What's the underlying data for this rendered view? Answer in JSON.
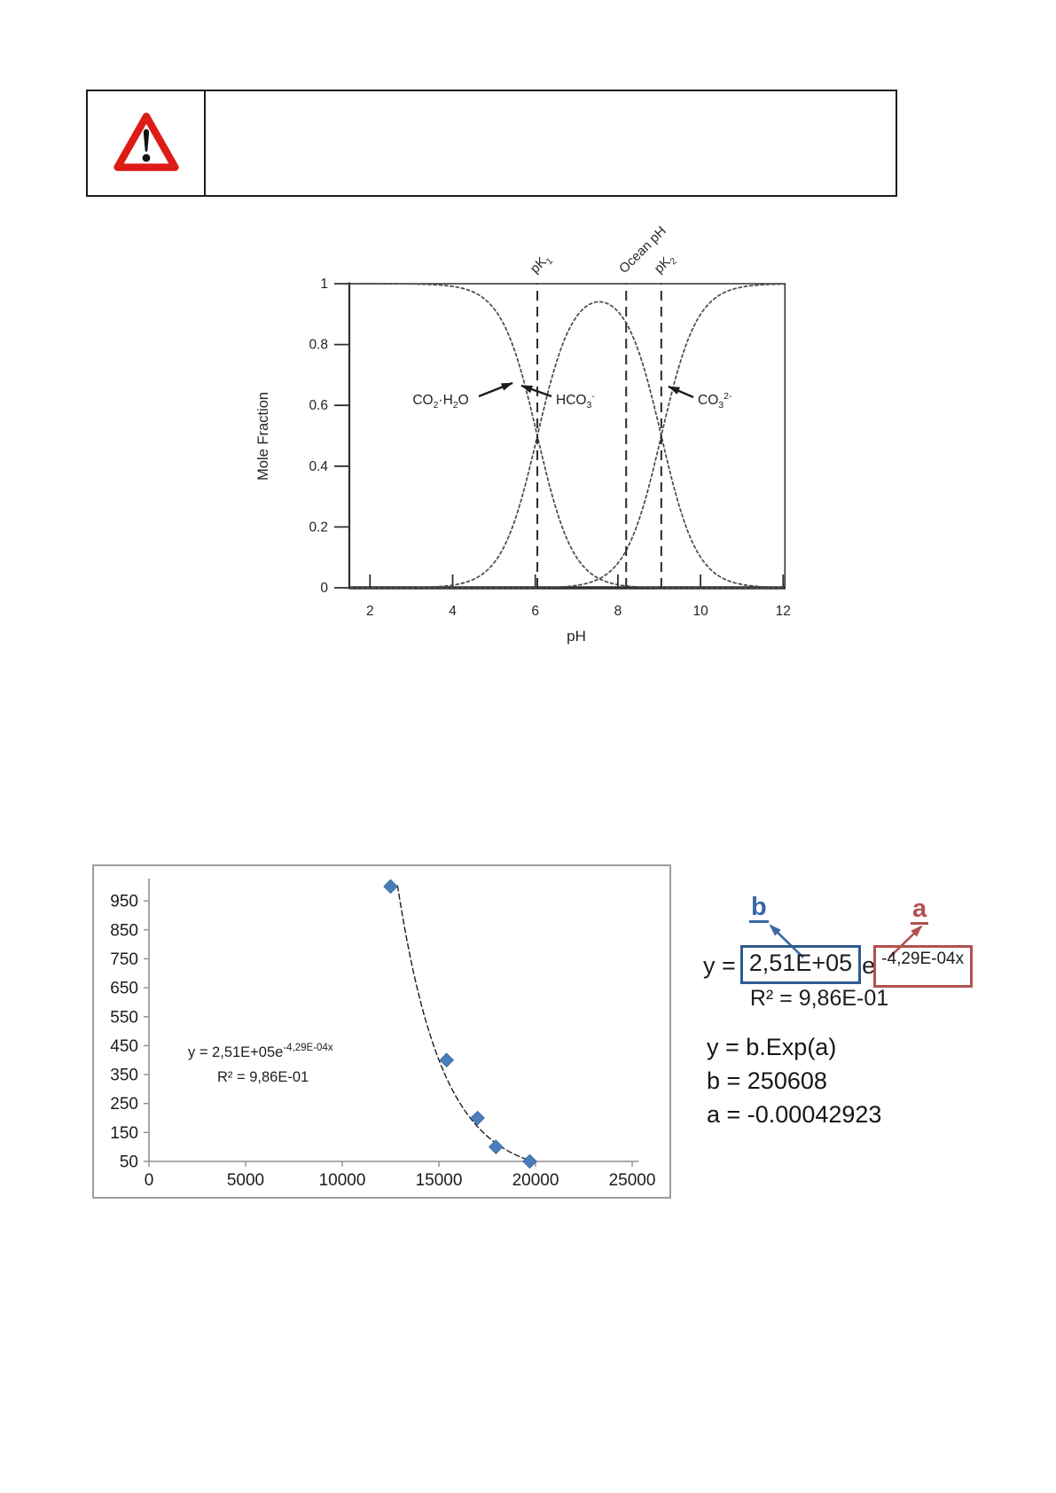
{
  "page": {
    "background": "#ffffff"
  },
  "warning": {
    "icon": "warning-triangle-icon",
    "icon_color": "#dd1c17",
    "message": ""
  },
  "chart_data": [
    {
      "name": "bjerrum-carbonate-speciation",
      "type": "line",
      "xlabel": "pH",
      "ylabel": "Mole Fraction",
      "xlim": [
        1.5,
        12.05
      ],
      "ylim": [
        0,
        1
      ],
      "x_ticks": [
        2,
        4,
        6,
        8,
        10,
        12
      ],
      "y_ticks": [
        0,
        0.2,
        0.4,
        0.6,
        0.8,
        1
      ],
      "grid": false,
      "legend_position": "none",
      "pK1": 6.05,
      "pK2": 9.05,
      "curve_color": "#4a4a4a",
      "series": [
        {
          "name": "co2-h2o",
          "label": "CO_2_·H_2_O"
        },
        {
          "name": "hco3",
          "label": "HCO_3_^-^"
        },
        {
          "name": "co3",
          "label": "CO_3_^2-^"
        }
      ],
      "vlines": [
        {
          "x": 6.05,
          "label": "pK_1_"
        },
        {
          "x": 8.2,
          "label": "Ocean pH"
        },
        {
          "x": 9.05,
          "label": "pK_2_"
        }
      ]
    },
    {
      "name": "exponential-fit-scatter",
      "type": "scatter",
      "x": [
        12500,
        15400,
        17000,
        17950,
        19700
      ],
      "y": [
        1000,
        400,
        200,
        100,
        50
      ],
      "x_ticks": [
        0,
        5000,
        10000,
        15000,
        20000,
        25000
      ],
      "y_ticks": [
        50,
        150,
        250,
        350,
        450,
        550,
        650,
        750,
        850,
        950
      ],
      "xlim": [
        0,
        25000
      ],
      "ylim": [
        50,
        1027
      ],
      "grid": false,
      "marker": "diamond",
      "marker_color": "#4a7ebb",
      "trendline": {
        "type": "exponential",
        "b": 250608,
        "a": -0.00042923
      },
      "equation_label": {
        "base": "y = 2,51E+05e",
        "exponent": "-4,29E-04x",
        "r2": "R² = 9,86E-01"
      }
    }
  ],
  "annotation": {
    "b_pointer_label": "b",
    "a_pointer_label": "a",
    "b_color": "#3a67a8",
    "a_color": "#b2504e",
    "blue_box_color": "#2e5b8f",
    "red_box_color": "#b2504e",
    "equation": {
      "prefix": "y =",
      "coefficient": "2,51E+05",
      "e": "e",
      "exponent": "-4,29E-04x"
    },
    "r2": "R² = 9,86E-01",
    "legend_lines": [
      "y = b.Exp(a)",
      "b = 250608",
      "a = -0.00042923"
    ]
  }
}
